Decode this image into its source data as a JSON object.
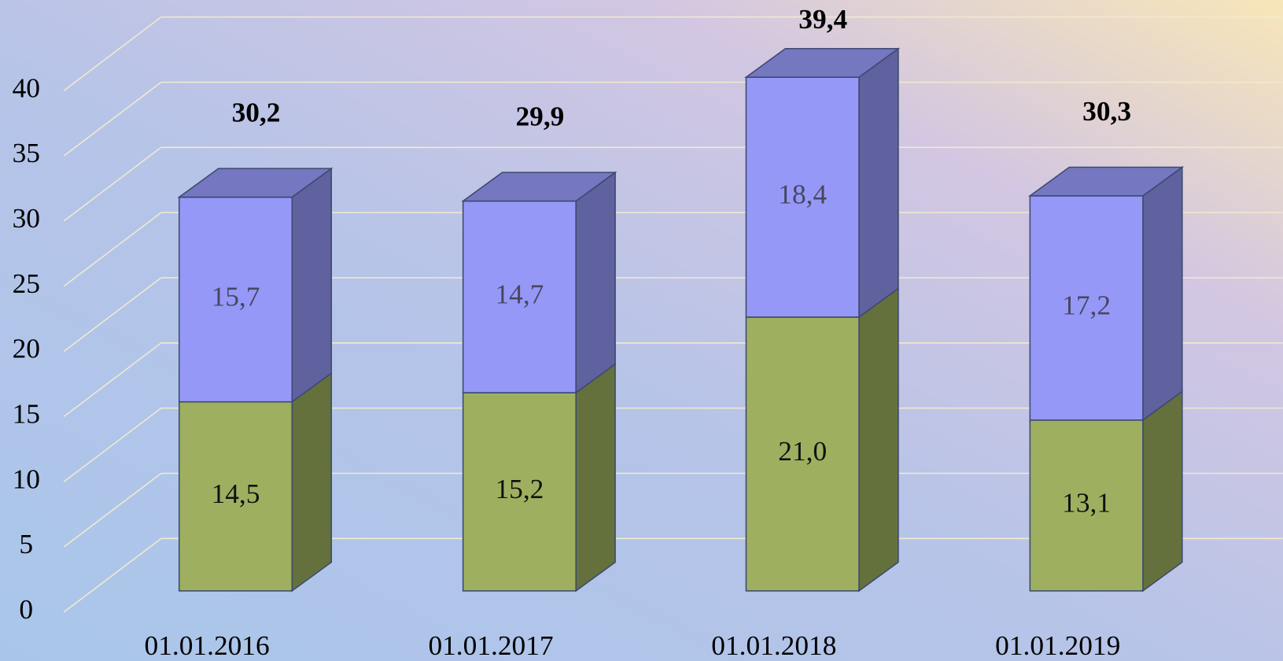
{
  "chart_data": {
    "type": "bar3d-stacked",
    "categories": [
      "01.01.2016",
      "01.01.2017",
      "01.01.2018",
      "01.01.2019"
    ],
    "series": [
      {
        "color": "#9eb060",
        "values": [
          14.5,
          15.2,
          21.0,
          13.1
        ],
        "value_labels": [
          "14,5",
          "15,2",
          "21,0",
          "13,1"
        ]
      },
      {
        "color": "#9698f8",
        "values": [
          15.7,
          14.7,
          18.4,
          17.2
        ],
        "value_labels": [
          "15,7",
          "14,7",
          "18,4",
          "17,2"
        ]
      }
    ],
    "totals": [
      30.2,
      29.9,
      39.4,
      30.3
    ],
    "total_labels": [
      "30,2",
      "29,9",
      "39,4",
      "30,3"
    ],
    "ylim": [
      0,
      40
    ],
    "yticks": [
      0,
      5,
      10,
      15,
      20,
      25,
      30,
      35,
      40
    ],
    "grid": true
  }
}
